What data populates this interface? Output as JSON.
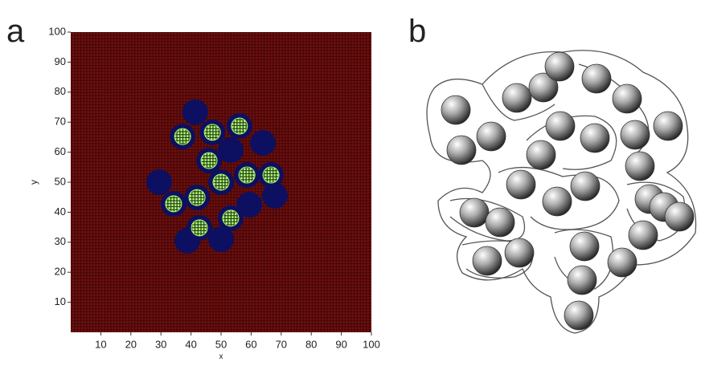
{
  "panel_labels": [
    "a",
    "b"
  ],
  "chart_data": {
    "type": "scatter",
    "x_label": "x",
    "y_label": "y",
    "xlim": [
      0,
      100
    ],
    "ylim": [
      0,
      100
    ],
    "xticks": [
      10,
      20,
      30,
      40,
      50,
      60,
      70,
      80,
      90,
      100
    ],
    "yticks": [
      10,
      20,
      30,
      40,
      50,
      60,
      70,
      80,
      90,
      100
    ],
    "plot_color": "#5e0a0a",
    "series": [
      {
        "color": "#0d1060",
        "x": [
          37.2,
          47.1,
          56.1,
          46.0,
          58.6,
          66.6,
          50.0,
          42.0,
          34.2,
          53.2,
          42.8,
          41.4,
          29.4,
          63.9,
          67.9,
          50.0,
          38.8,
          53.2,
          59.4
        ],
        "values": [
          65.2,
          66.6,
          68.7,
          57.2,
          52.4,
          52.4,
          50.0,
          44.9,
          42.8,
          38.0,
          34.8,
          73.3,
          50.0,
          63.1,
          45.5,
          31.0,
          30.5,
          60.7,
          42.5
        ]
      },
      {
        "color": "#a8f070",
        "x": [
          37.2,
          47.1,
          56.1,
          46.0,
          58.6,
          66.6,
          50.0,
          42.0,
          34.2,
          53.2,
          42.8
        ],
        "values": [
          65.2,
          66.6,
          68.7,
          57.2,
          52.4,
          52.4,
          50.0,
          44.9,
          42.8,
          38.0,
          34.8
        ]
      }
    ]
  }
}
